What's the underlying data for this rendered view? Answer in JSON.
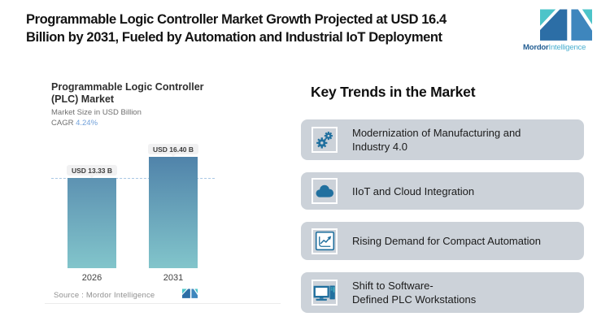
{
  "header": {
    "title": "Programmable Logic Controller Market Growth Projected at USD 16.4\nBillion by 2031, Fueled by Automation and Industrial IoT Deployment",
    "brand": {
      "bold": "Mordor",
      "light": "Intelligence"
    }
  },
  "chart": {
    "title": "Programmable Logic Controller\n(PLC) Market",
    "subtitle": "Market Size in USD Billion",
    "cagr_label": "CAGR ",
    "cagr_value": "4.24%",
    "source": "Source :  Mordor Intelligence"
  },
  "chart_data": {
    "type": "bar",
    "title": "Programmable Logic Controller (PLC) Market",
    "subtitle": "Market Size in USD Billion",
    "unit": "USD Billion",
    "cagr": "4.24%",
    "categories": [
      "2026",
      "2031"
    ],
    "values": [
      13.33,
      16.4
    ],
    "bar_labels": [
      "USD 13.33 B",
      "USD 16.40 B"
    ],
    "reference_line_value": 13.33,
    "ylim": [
      0,
      16.4
    ],
    "grid": false,
    "legend": "none",
    "source": "Mordor Intelligence",
    "colors": {
      "bar_gradient_top": "#5083aa",
      "bar_gradient_bottom": "#82c5cb",
      "reference_line": "#a9c7e4",
      "value_pill_bg": "#f1f1f2"
    }
  },
  "trends": {
    "heading": "Key Trends in the Market",
    "items": [
      {
        "icon": "gears-icon",
        "label": "Modernization of Manufacturing and\nIndustry 4.0"
      },
      {
        "icon": "cloud-icon",
        "label": "IIoT and Cloud Integration"
      },
      {
        "icon": "line-chart-icon",
        "label": "Rising Demand for Compact Automation"
      },
      {
        "icon": "workstation-icon",
        "label": "Shift to Software-\nDefined PLC Workstations"
      }
    ]
  },
  "colors": {
    "icon_blue": "#21709f",
    "icon_teal": "#4db9c6",
    "card_bg": "#ccd2d9",
    "logo_dark_blue": "#2c6ea6",
    "logo_blue": "#3e86bd",
    "logo_teal": "#4cc4c9"
  }
}
